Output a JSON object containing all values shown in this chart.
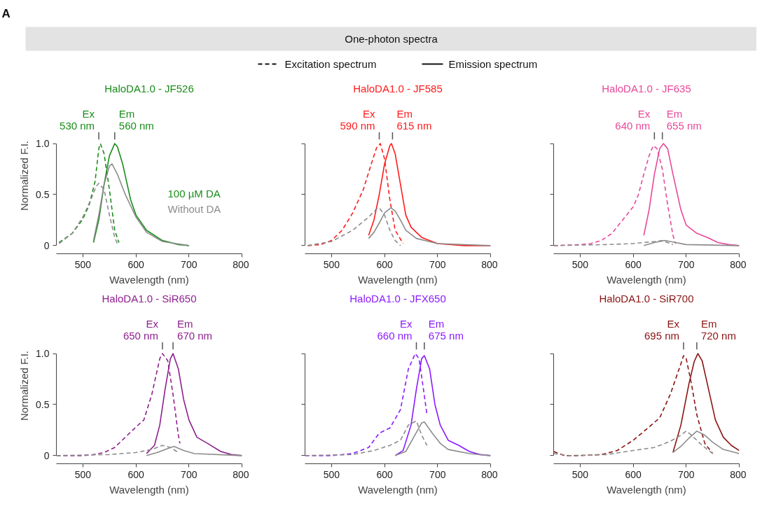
{
  "chart_data": [
    {
      "type": "line",
      "title": "HaloDA1.0 - JF526",
      "xlabel": "Wavelength (nm)",
      "ylabel": "Normalized F.I.",
      "xlim": [
        450,
        800
      ],
      "ylim": [
        0,
        1
      ],
      "xticks": [
        500,
        600,
        700,
        800
      ],
      "yticks": [
        0,
        0.5,
        {
          "value": 1,
          "label": "1.0"
        }
      ],
      "grid": false,
      "annotations": [
        "A",
        "One-photon spectra",
        "Excitation spectrum",
        "Emission spectrum",
        {
          "text": "Ex\n530 nm",
          "x": 530,
          "y": 1.0
        },
        {
          "text": "Em\n560 nm",
          "x": 560,
          "y": 1.0
        }
      ],
      "series": [
        {
          "color": "#1a8c1a",
          "line_style": "dashed",
          "x": [
            455,
            480,
            500,
            512,
            523,
            530,
            533,
            540,
            550,
            560,
            568
          ],
          "values": [
            0.03,
            0.12,
            0.26,
            0.4,
            0.63,
            0.95,
            1.0,
            0.9,
            0.55,
            0.15,
            0.03
          ]
        },
        {
          "name": "100 µM DA",
          "color": "#1a8c1a",
          "line_style": "solid",
          "x": [
            520,
            530,
            540,
            550,
            560,
            565,
            575,
            590,
            600,
            620,
            650,
            680,
            700
          ],
          "values": [
            0.03,
            0.25,
            0.6,
            0.88,
            1.0,
            0.97,
            0.8,
            0.45,
            0.3,
            0.15,
            0.05,
            0.01,
            0.0
          ]
        },
        {
          "color": "#8c8c8c",
          "line_style": "dashed",
          "x": [
            455,
            480,
            500,
            515,
            525,
            530,
            540,
            550,
            560,
            565
          ],
          "values": [
            0.02,
            0.12,
            0.28,
            0.45,
            0.58,
            0.61,
            0.55,
            0.3,
            0.08,
            0.02
          ]
        },
        {
          "name": "Without DA",
          "color": "#8c8c8c",
          "line_style": "solid",
          "x": [
            520,
            530,
            540,
            550,
            555,
            565,
            580,
            600,
            620,
            650,
            700
          ],
          "values": [
            0.05,
            0.3,
            0.6,
            0.78,
            0.8,
            0.7,
            0.5,
            0.28,
            0.13,
            0.04,
            0.0
          ]
        }
      ]
    },
    {
      "type": "line",
      "title": "HaloDA1.0 - JF585",
      "xlabel": "Wavelength (nm)",
      "xlim": [
        450,
        800
      ],
      "ylim": [
        0,
        1
      ],
      "xticks": [
        500,
        600,
        700,
        800
      ],
      "yticks": [
        0,
        0.5,
        1
      ],
      "tick_labels": "x",
      "grid": false,
      "annotations": [
        {
          "text": "Ex\n590 nm",
          "x": 590,
          "y": 1.0
        },
        {
          "text": "Em\n615 nm",
          "x": 615,
          "y": 1.0
        }
      ],
      "series": [
        {
          "color": "#ff1a1a",
          "line_style": "dashed",
          "x": [
            455,
            480,
            500,
            520,
            540,
            560,
            575,
            585,
            592,
            600,
            610,
            620,
            635
          ],
          "values": [
            0.0,
            0.01,
            0.05,
            0.15,
            0.32,
            0.55,
            0.8,
            0.96,
            1.0,
            0.85,
            0.45,
            0.15,
            0.02
          ]
        },
        {
          "color": "#ff1a1a",
          "line_style": "solid",
          "x": [
            570,
            580,
            590,
            600,
            610,
            613,
            620,
            630,
            640,
            650,
            670,
            700,
            750,
            800
          ],
          "values": [
            0.1,
            0.25,
            0.5,
            0.8,
            0.98,
            1.0,
            0.9,
            0.6,
            0.3,
            0.18,
            0.08,
            0.02,
            0.0,
            0.0
          ]
        },
        {
          "color": "#8c8c8c",
          "line_style": "dashed",
          "x": [
            455,
            500,
            540,
            570,
            585,
            590,
            600,
            610,
            620,
            630
          ],
          "values": [
            0.0,
            0.04,
            0.15,
            0.28,
            0.36,
            0.37,
            0.3,
            0.15,
            0.05,
            0.0
          ]
        },
        {
          "color": "#8c8c8c",
          "line_style": "solid",
          "x": [
            570,
            580,
            590,
            600,
            612,
            620,
            630,
            640,
            660,
            700,
            800
          ],
          "values": [
            0.07,
            0.13,
            0.22,
            0.32,
            0.37,
            0.34,
            0.25,
            0.15,
            0.07,
            0.02,
            0.0
          ]
        }
      ]
    },
    {
      "type": "line",
      "title": "HaloDA1.0 - JF635",
      "xlabel": "Wavelength (nm)",
      "xlim": [
        450,
        800
      ],
      "ylim": [
        0,
        1
      ],
      "xticks": [
        500,
        600,
        700,
        800
      ],
      "yticks": [
        0,
        0.5,
        1
      ],
      "tick_labels": "x",
      "grid": false,
      "annotations": [
        {
          "text": "Ex\n640 nm",
          "x": 640,
          "y": 1.0
        },
        {
          "text": "Em\n655 nm",
          "x": 655,
          "y": 1.0
        }
      ],
      "series": [
        {
          "color": "#e8489a",
          "line_style": "dashed",
          "x": [
            450,
            500,
            520,
            540,
            560,
            580,
            600,
            610,
            620,
            630,
            638,
            645,
            655,
            665,
            675,
            680
          ],
          "values": [
            0.0,
            0.01,
            0.02,
            0.05,
            0.12,
            0.25,
            0.38,
            0.5,
            0.7,
            0.88,
            0.98,
            0.95,
            0.75,
            0.4,
            0.1,
            0.02
          ]
        },
        {
          "color": "#e8489a",
          "line_style": "solid",
          "x": [
            620,
            630,
            640,
            650,
            657,
            665,
            675,
            690,
            700,
            720,
            740,
            760,
            780,
            800
          ],
          "values": [
            0.1,
            0.35,
            0.7,
            0.95,
            1.0,
            0.95,
            0.7,
            0.35,
            0.2,
            0.12,
            0.08,
            0.03,
            0.01,
            0.0
          ]
        },
        {
          "color": "#8c8c8c",
          "line_style": "dashed",
          "x": [
            450,
            550,
            600,
            640,
            655,
            665,
            675
          ],
          "values": [
            0.0,
            0.01,
            0.02,
            0.04,
            0.05,
            0.03,
            0.01
          ]
        },
        {
          "color": "#8c8c8c",
          "line_style": "solid",
          "x": [
            620,
            640,
            660,
            680,
            700,
            800
          ],
          "values": [
            0.0,
            0.03,
            0.05,
            0.03,
            0.01,
            0.0
          ]
        }
      ]
    },
    {
      "type": "line",
      "title": "HaloDA1.0 - SiR650",
      "xlabel": "Wavelength (nm)",
      "ylabel": "Normalized F.I.",
      "xlim": [
        450,
        800
      ],
      "ylim": [
        0,
        1
      ],
      "xticks": [
        500,
        600,
        700,
        800
      ],
      "yticks": [
        0,
        0.5,
        {
          "value": 1,
          "label": "1.0"
        }
      ],
      "grid": false,
      "annotations": [
        {
          "text": "Ex\n650 nm",
          "x": 650,
          "y": 1.0
        },
        {
          "text": "Em\n670 nm",
          "x": 670,
          "y": 1.0
        }
      ],
      "series": [
        {
          "color": "#8e1f8e",
          "line_style": "dashed",
          "x": [
            450,
            500,
            520,
            540,
            560,
            580,
            600,
            615,
            630,
            645,
            650,
            660,
            670,
            680,
            683
          ],
          "values": [
            0.0,
            0.0,
            0.01,
            0.03,
            0.08,
            0.18,
            0.28,
            0.35,
            0.6,
            0.95,
            1.0,
            0.93,
            0.6,
            0.2,
            0.12
          ]
        },
        {
          "color": "#8e1f8e",
          "line_style": "solid",
          "x": [
            620,
            635,
            645,
            655,
            665,
            670,
            680,
            690,
            700,
            715,
            735,
            760,
            780,
            800
          ],
          "values": [
            0.02,
            0.1,
            0.3,
            0.65,
            0.95,
            1.0,
            0.85,
            0.55,
            0.35,
            0.18,
            0.12,
            0.04,
            0.01,
            0.0
          ]
        },
        {
          "color": "#8c8c8c",
          "line_style": "dashed",
          "x": [
            450,
            550,
            600,
            630,
            650,
            665,
            680
          ],
          "values": [
            0.0,
            0.01,
            0.03,
            0.06,
            0.1,
            0.08,
            0.03
          ]
        },
        {
          "color": "#8c8c8c",
          "line_style": "solid",
          "x": [
            620,
            640,
            660,
            672,
            690,
            710,
            800
          ],
          "values": [
            0.0,
            0.03,
            0.07,
            0.09,
            0.05,
            0.02,
            0.0
          ]
        }
      ]
    },
    {
      "type": "line",
      "title": "HaloDA1.0 - JFX650",
      "xlabel": "Wavelength (nm)",
      "xlim": [
        450,
        800
      ],
      "ylim": [
        0,
        1
      ],
      "xticks": [
        500,
        600,
        700,
        800
      ],
      "yticks": [
        0,
        0.5,
        1
      ],
      "tick_labels": "x",
      "grid": false,
      "annotations": [
        {
          "text": "Ex\n660 nm",
          "x": 660,
          "y": 1.0
        },
        {
          "text": "Em\n675 nm",
          "x": 675,
          "y": 1.0
        }
      ],
      "series": [
        {
          "color": "#8a1aff",
          "line_style": "dashed",
          "x": [
            450,
            500,
            540,
            570,
            590,
            610,
            630,
            645,
            658,
            665,
            672,
            680
          ],
          "values": [
            0.0,
            0.0,
            0.02,
            0.08,
            0.22,
            0.27,
            0.45,
            0.85,
            1.0,
            0.95,
            0.7,
            0.4
          ]
        },
        {
          "color": "#8a1aff",
          "line_style": "solid",
          "x": [
            620,
            635,
            650,
            660,
            670,
            675,
            685,
            695,
            705,
            720,
            740,
            760,
            780,
            800
          ],
          "values": [
            0.0,
            0.05,
            0.3,
            0.65,
            0.95,
            0.98,
            0.85,
            0.5,
            0.3,
            0.15,
            0.1,
            0.04,
            0.01,
            0.0
          ]
        },
        {
          "color": "#8c8c8c",
          "line_style": "dashed",
          "x": [
            450,
            540,
            580,
            610,
            630,
            645,
            660,
            670,
            680
          ],
          "values": [
            0.0,
            0.01,
            0.05,
            0.1,
            0.15,
            0.3,
            0.34,
            0.2,
            0.1
          ]
        },
        {
          "color": "#8c8c8c",
          "line_style": "solid",
          "x": [
            620,
            640,
            655,
            670,
            675,
            690,
            705,
            720,
            760,
            800
          ],
          "values": [
            0.0,
            0.04,
            0.18,
            0.32,
            0.33,
            0.22,
            0.12,
            0.06,
            0.02,
            0.0
          ]
        }
      ]
    },
    {
      "type": "line",
      "title": "HaloDA1.0 - SiR700",
      "xlabel": "Wavelength (nm)",
      "xlim": [
        450,
        800
      ],
      "ylim": [
        0,
        1
      ],
      "xticks": [
        500,
        600,
        700,
        800
      ],
      "yticks": [
        0,
        0.5,
        1
      ],
      "tick_labels": "x",
      "grid": false,
      "annotations": [
        {
          "text": "Ex\n695 nm",
          "x": 695,
          "y": 1.0
        },
        {
          "text": "Em\n720 nm",
          "x": 720,
          "y": 1.0
        }
      ],
      "series": [
        {
          "color": "#8b1212",
          "line_style": "dashed",
          "x": [
            450,
            470,
            500,
            540,
            570,
            600,
            630,
            650,
            670,
            690,
            695,
            700,
            710,
            720,
            735,
            750
          ],
          "values": [
            0.04,
            0.0,
            0.0,
            0.01,
            0.05,
            0.15,
            0.28,
            0.37,
            0.6,
            0.9,
            0.98,
            0.95,
            0.7,
            0.4,
            0.12,
            0.02
          ]
        },
        {
          "color": "#8b1212",
          "line_style": "solid",
          "x": [
            675,
            690,
            705,
            715,
            722,
            730,
            740,
            755,
            770,
            785,
            800
          ],
          "values": [
            0.03,
            0.3,
            0.7,
            0.92,
            1.0,
            0.93,
            0.7,
            0.35,
            0.18,
            0.1,
            0.05
          ]
        },
        {
          "color": "#8c8c8c",
          "line_style": "dashed",
          "x": [
            450,
            480,
            550,
            600,
            640,
            670,
            690,
            700,
            710,
            730,
            750
          ],
          "values": [
            0.02,
            0.0,
            0.01,
            0.05,
            0.08,
            0.14,
            0.2,
            0.24,
            0.2,
            0.1,
            0.02
          ]
        },
        {
          "color": "#8c8c8c",
          "line_style": "solid",
          "x": [
            675,
            690,
            705,
            720,
            735,
            750,
            770,
            800
          ],
          "values": [
            0.03,
            0.09,
            0.17,
            0.24,
            0.2,
            0.13,
            0.06,
            0.02
          ]
        }
      ]
    }
  ]
}
